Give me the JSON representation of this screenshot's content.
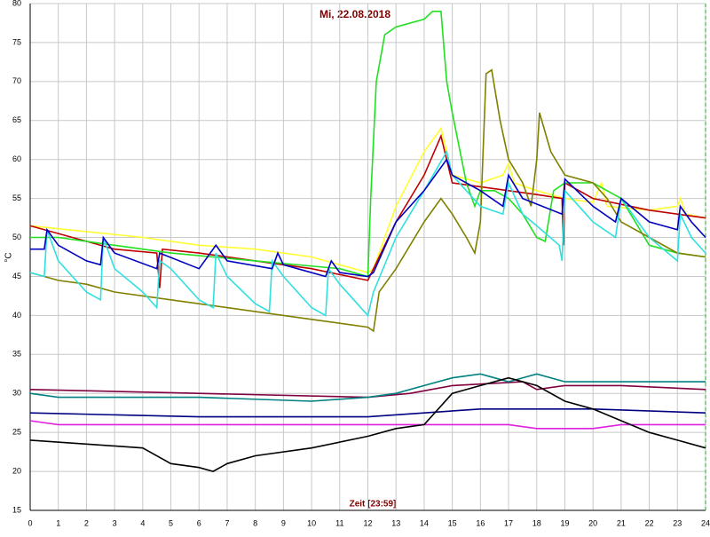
{
  "chart_data": {
    "type": "line",
    "title": "Mi, 22.08.2018",
    "x_label": "Zeit [23:59]",
    "y_label": "°C",
    "xlim": [
      0,
      24
    ],
    "xticks": [
      0,
      1,
      2,
      3,
      4,
      5,
      6,
      7,
      8,
      9,
      10,
      11,
      12,
      13,
      14,
      15,
      16,
      17,
      18,
      19,
      20,
      21,
      22,
      23,
      24
    ],
    "ylim": [
      15,
      80
    ],
    "yticks": [
      15,
      20,
      25,
      30,
      35,
      40,
      45,
      50,
      55,
      60,
      65,
      70,
      75,
      80
    ],
    "grid": true,
    "series": [
      {
        "color": "#ffff30",
        "x": [
          0,
          4,
          6,
          8,
          10,
          12,
          12.2,
          13,
          14,
          14.6,
          15,
          16,
          16.8,
          17,
          17.2,
          18,
          19,
          20,
          20.3,
          20.5,
          22,
          23,
          23.1,
          23.3,
          24
        ],
        "values": [
          51.5,
          50,
          49,
          48.5,
          47.5,
          45.5,
          46,
          54,
          61,
          64,
          58,
          57,
          58,
          59.5,
          57,
          56,
          55,
          54.5,
          57,
          54,
          53.5,
          54,
          55,
          53,
          52.5
        ]
      },
      {
        "color": "#c00000",
        "x": [
          0,
          2,
          3,
          4.5,
          4.6,
          4.7,
          6,
          8,
          10,
          12,
          13,
          14,
          14.6,
          15,
          17,
          18,
          18.9,
          18.95,
          19,
          20,
          22,
          24
        ],
        "values": [
          51.5,
          49.5,
          48.5,
          48,
          43.5,
          48.5,
          48,
          47,
          46,
          44.5,
          52,
          58,
          63,
          57,
          56,
          55.5,
          55,
          49,
          57,
          55,
          53.5,
          52.5
        ]
      },
      {
        "color": "#20e020",
        "x": [
          0,
          1,
          2,
          3,
          5,
          8,
          11,
          12,
          12.1,
          12.3,
          12.6,
          13,
          14,
          14.3,
          14.6,
          14.8,
          15,
          15.5,
          15.8,
          16,
          16.5,
          17,
          17.5,
          18,
          18.3,
          18.6,
          19,
          20,
          20.5,
          21,
          22,
          23,
          24
        ],
        "values": [
          50,
          50,
          49.5,
          49,
          48,
          47,
          46,
          45,
          55,
          70,
          76,
          77,
          78,
          79,
          79,
          70,
          66,
          57,
          54,
          56,
          56,
          55,
          53,
          50,
          49.5,
          56,
          57,
          57,
          56,
          55,
          49,
          48,
          47.5
        ]
      },
      {
        "color": "#808000",
        "x": [
          0,
          1,
          2,
          3,
          5,
          7,
          9,
          10,
          11,
          12,
          12.2,
          12.4,
          13,
          14,
          14.6,
          15,
          15.5,
          15.8,
          16,
          16.2,
          16.4,
          16.7,
          17,
          17.5,
          17.8,
          18,
          18.1,
          18.5,
          19,
          20,
          20.5,
          21,
          22,
          23,
          24
        ],
        "values": [
          45.5,
          44.5,
          44,
          43,
          42,
          41,
          40,
          39.5,
          39,
          38.5,
          38,
          43,
          46,
          52,
          55,
          53,
          50,
          48,
          52,
          71,
          71.5,
          65,
          60,
          57,
          54,
          60,
          66,
          61,
          58,
          57,
          55,
          52,
          50,
          48,
          47.5
        ]
      },
      {
        "color": "#30e0e0",
        "x": [
          0,
          0.5,
          0.6,
          1,
          2,
          2.5,
          2.6,
          3,
          4,
          4.5,
          4.6,
          5,
          6,
          6.5,
          6.6,
          7,
          8,
          8.5,
          8.6,
          9,
          10,
          10.5,
          10.6,
          11,
          12,
          12.2,
          13,
          14,
          14.8,
          15,
          16,
          16.8,
          17,
          17.5,
          18,
          18.8,
          18.9,
          19,
          20,
          20.8,
          21,
          22,
          23,
          23.1,
          23.5,
          24
        ],
        "values": [
          45.5,
          45,
          51,
          47,
          43,
          42,
          50,
          46,
          43,
          41,
          47,
          46,
          42,
          41,
          48,
          45,
          41.5,
          40.5,
          47,
          45,
          41,
          40,
          46,
          44,
          40,
          43,
          50,
          56,
          61,
          58,
          54,
          53,
          57,
          53,
          51.5,
          49,
          47,
          56,
          52,
          50,
          55,
          50,
          47,
          53,
          50,
          48
        ]
      },
      {
        "color": "#0000c0",
        "x": [
          0,
          0.5,
          0.6,
          1,
          2,
          2.5,
          2.6,
          3,
          4.5,
          4.6,
          6,
          6.6,
          7,
          8.6,
          8.8,
          9,
          10.5,
          10.7,
          11,
          12,
          12.2,
          13,
          14,
          14.8,
          15,
          16,
          16.8,
          17,
          17.5,
          18.9,
          19,
          20,
          20.8,
          21,
          22,
          23,
          23.1,
          23.5,
          24
        ],
        "values": [
          48.5,
          48.5,
          51,
          49,
          47,
          46.5,
          50,
          48,
          46,
          48,
          46,
          49,
          47,
          46,
          48,
          46.5,
          45,
          47,
          45.5,
          45,
          45.5,
          52,
          56,
          60,
          58,
          56,
          54,
          58,
          55,
          53,
          57.5,
          54,
          52,
          55,
          52,
          51,
          54,
          52,
          50
        ]
      },
      {
        "color": "#800040",
        "x": [
          0,
          6,
          12,
          13.5,
          15,
          17.5,
          18,
          19,
          21,
          24
        ],
        "values": [
          30.5,
          30,
          29.5,
          30,
          31,
          31.5,
          30.5,
          31,
          31,
          30.5
        ]
      },
      {
        "color": "#008080",
        "x": [
          0,
          1,
          6,
          10,
          12,
          13,
          14,
          15,
          16,
          16.5,
          17,
          18,
          19,
          22,
          24
        ],
        "values": [
          30,
          29.5,
          29.5,
          29,
          29.5,
          30,
          31,
          32,
          32.5,
          32,
          31.5,
          32.5,
          31.5,
          31.5,
          31.5
        ]
      },
      {
        "color": "#000080",
        "x": [
          0,
          6,
          12,
          14,
          16,
          20,
          24
        ],
        "values": [
          27.5,
          27,
          27,
          27.5,
          28,
          28,
          27.5
        ]
      },
      {
        "color": "#e020e0",
        "x": [
          0,
          1,
          12,
          15,
          16,
          17,
          18,
          20,
          21,
          24
        ],
        "values": [
          26.5,
          26,
          26,
          26,
          26,
          26,
          25.5,
          25.5,
          26,
          26
        ]
      },
      {
        "color": "#000000",
        "x": [
          0,
          2,
          4,
          5,
          6,
          6.5,
          7,
          8,
          10,
          12,
          13,
          14,
          14.5,
          15,
          16,
          17,
          18,
          19,
          20,
          21,
          22,
          23,
          24
        ],
        "values": [
          24,
          23.5,
          23,
          21,
          20.5,
          20,
          21,
          22,
          23,
          24.5,
          25.5,
          26,
          28,
          30,
          31,
          32,
          31,
          29,
          28,
          26.5,
          25,
          24,
          23
        ]
      }
    ]
  }
}
